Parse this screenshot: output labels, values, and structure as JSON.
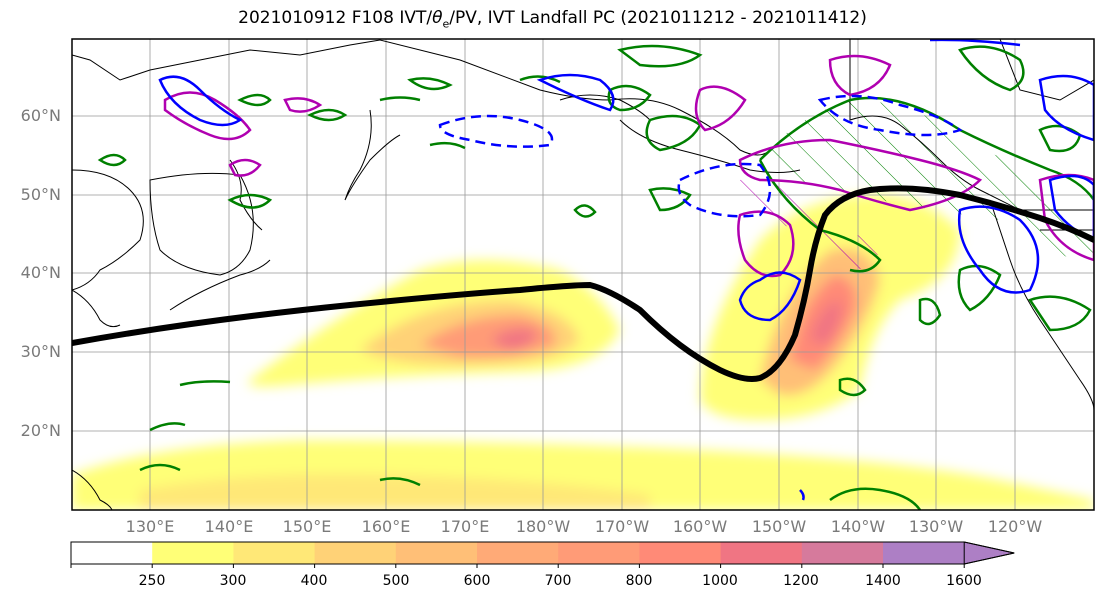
{
  "title_prefix": "2021010912 F108 IVT/",
  "title_theta": "θ",
  "title_sub": "e",
  "title_suffix": "/PV, IVT Landfall PC (2021011212 - 2021011412)",
  "lat_labels": [
    "60°N",
    "50°N",
    "40°N",
    "30°N",
    "20°N"
  ],
  "lon_labels": [
    "130°E",
    "140°E",
    "150°E",
    "160°E",
    "170°E",
    "180°W",
    "170°W",
    "160°W",
    "150°W",
    "140°W",
    "130°W",
    "120°W"
  ],
  "colorbar": {
    "ticks": [
      "250",
      "300",
      "400",
      "500",
      "600",
      "700",
      "800",
      "1000",
      "1200",
      "1400",
      "1600"
    ],
    "colors": [
      "#ffffff",
      "#ffff77",
      "#ffe877",
      "#ffd277",
      "#ffbf77",
      "#ffaa77",
      "#ff9b77",
      "#ff8a77",
      "#f07583",
      "#d67a9c",
      "#ad7fc5"
    ],
    "extend": "max"
  },
  "colors": {
    "theta_e_contour": "#008000",
    "pv_contour": "#b000b0",
    "pv_dashed": "#0000ff",
    "landfall_pc_line": "#000000",
    "coastline": "#000000"
  }
}
